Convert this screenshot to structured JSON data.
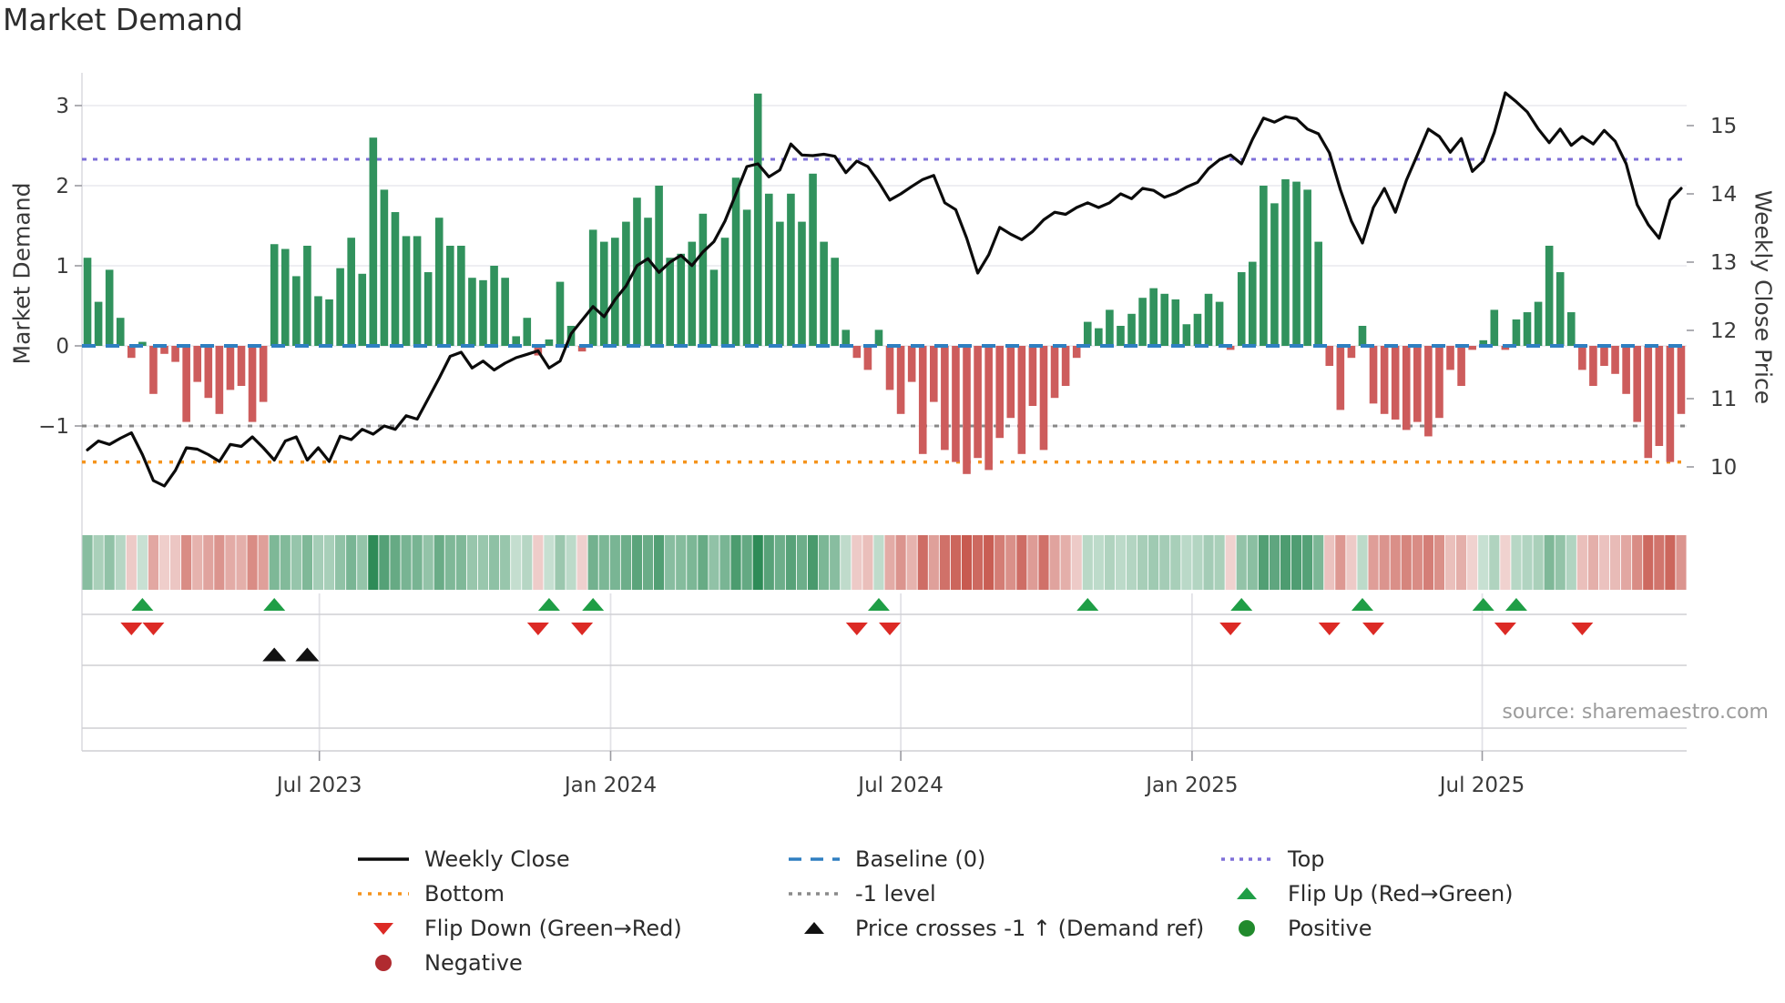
{
  "title": "Market Demand",
  "left_axis_label": "Market Demand",
  "right_axis_label": "Weekly Close Price",
  "source": "source: sharemaestro.com",
  "legend": {
    "col1": [
      {
        "label": "Weekly Close",
        "marker": "line-black"
      },
      {
        "label": "Bottom",
        "marker": "dotted-orange"
      },
      {
        "label": "Flip Down (Green→Red)",
        "marker": "tri-down-red"
      },
      {
        "label": "Negative",
        "marker": "circle-darkred"
      }
    ],
    "col2": [
      {
        "label": "Baseline (0)",
        "marker": "dash-blue"
      },
      {
        "label": "-1 level",
        "marker": "dotted-gray"
      },
      {
        "label": "Price crosses -1 ↑ (Demand ref)",
        "marker": "tri-up-black"
      }
    ],
    "col3": [
      {
        "label": "Top",
        "marker": "dotted-purple"
      },
      {
        "label": "Flip Up (Red→Green)",
        "marker": "tri-up-green"
      },
      {
        "label": "Positive",
        "marker": "circle-green"
      }
    ]
  },
  "chart_data": {
    "type": "bar",
    "subtype": "weekly demand bars + price line + signal heatmap strip + flip markers",
    "title": "Market Demand",
    "xlabel": "",
    "ylabel_left": "Market Demand",
    "ylabel_right": "Weekly Close Price",
    "x_tick_labels": [
      "Jul 2023",
      "Jan 2024",
      "Jul 2024",
      "Jan 2025",
      "Jul 2025"
    ],
    "x_tick_weeks": [
      21.6,
      48.1,
      74.5,
      101.0,
      127.4
    ],
    "n_weeks": 146,
    "left_ticks": [
      {
        "label": "3",
        "v": 3
      },
      {
        "label": "2",
        "v": 2
      },
      {
        "label": "1",
        "v": 1
      },
      {
        "label": "0",
        "v": 0
      },
      {
        "label": "−1",
        "v": -1
      }
    ],
    "right_ticks": [
      {
        "label": "15",
        "p": 15
      },
      {
        "label": "14",
        "p": 14
      },
      {
        "label": "13",
        "p": 13
      },
      {
        "label": "12",
        "p": 12
      },
      {
        "label": "11",
        "p": 11
      },
      {
        "label": "10",
        "p": 10
      }
    ],
    "ylim_demand": [
      -2.07,
      3.41
    ],
    "ylim_price": [
      9.35,
      15.77
    ],
    "levels": {
      "top": 2.33,
      "baseline": 0,
      "minus1": -1,
      "bottom": -1.45
    },
    "series": {
      "demand": [
        1.1,
        0.55,
        0.95,
        0.35,
        -0.15,
        0.05,
        -0.6,
        -0.1,
        -0.2,
        -0.95,
        -0.45,
        -0.65,
        -0.85,
        -0.55,
        -0.5,
        -0.95,
        -0.7,
        1.27,
        1.21,
        0.87,
        1.25,
        0.62,
        0.58,
        0.97,
        1.35,
        0.9,
        2.6,
        1.95,
        1.67,
        1.37,
        1.37,
        0.92,
        1.6,
        1.25,
        1.25,
        0.85,
        0.82,
        1.0,
        0.85,
        0.12,
        0.35,
        -0.12,
        0.08,
        0.8,
        0.25,
        -0.07,
        1.45,
        1.3,
        1.35,
        1.55,
        1.85,
        1.6,
        2.0,
        1.1,
        1.15,
        1.3,
        1.65,
        0.95,
        1.35,
        2.1,
        1.7,
        3.15,
        1.9,
        1.55,
        1.9,
        1.55,
        2.15,
        1.3,
        1.1,
        0.2,
        -0.15,
        -0.3,
        0.2,
        -0.55,
        -0.85,
        -0.45,
        -1.35,
        -0.7,
        -1.3,
        -1.45,
        -1.6,
        -1.4,
        -1.55,
        -1.15,
        -0.9,
        -1.35,
        -0.75,
        -1.3,
        -0.65,
        -0.5,
        -0.15,
        0.3,
        0.22,
        0.45,
        0.25,
        0.4,
        0.6,
        0.72,
        0.65,
        0.58,
        0.27,
        0.4,
        0.65,
        0.55,
        -0.05,
        0.92,
        1.05,
        2.0,
        1.78,
        2.08,
        2.05,
        1.95,
        1.3,
        -0.25,
        -0.8,
        -0.15,
        0.25,
        -0.72,
        -0.85,
        -0.92,
        -1.05,
        -0.95,
        -1.13,
        -0.9,
        -0.3,
        -0.5,
        -0.05,
        0.07,
        0.45,
        -0.05,
        0.33,
        0.42,
        0.55,
        1.25,
        0.92,
        0.42,
        -0.3,
        -0.5,
        -0.25,
        -0.35,
        -0.6,
        -0.95,
        -1.4,
        -1.25,
        -1.45,
        -0.85
      ],
      "price": [
        10.25,
        10.38,
        10.33,
        10.42,
        10.5,
        10.18,
        9.8,
        9.72,
        9.95,
        10.28,
        10.26,
        10.18,
        10.08,
        10.33,
        10.3,
        10.44,
        10.28,
        10.1,
        10.38,
        10.44,
        10.1,
        10.28,
        10.08,
        10.45,
        10.4,
        10.55,
        10.48,
        10.6,
        10.55,
        10.75,
        10.7,
        11.0,
        11.3,
        11.62,
        11.68,
        11.45,
        11.55,
        11.42,
        11.52,
        11.6,
        11.65,
        11.7,
        11.45,
        11.55,
        11.95,
        12.15,
        12.35,
        12.2,
        12.45,
        12.65,
        12.95,
        13.05,
        12.85,
        13.0,
        13.1,
        12.95,
        13.15,
        13.3,
        13.6,
        14.0,
        14.4,
        14.44,
        14.25,
        14.35,
        14.73,
        14.57,
        14.56,
        14.58,
        14.55,
        14.31,
        14.48,
        14.4,
        14.17,
        13.91,
        14.0,
        14.11,
        14.21,
        14.27,
        13.87,
        13.77,
        13.35,
        12.84,
        13.11,
        13.51,
        13.41,
        13.33,
        13.45,
        13.62,
        13.73,
        13.7,
        13.8,
        13.87,
        13.8,
        13.87,
        14.0,
        13.93,
        14.08,
        14.05,
        13.95,
        14.01,
        14.1,
        14.17,
        14.37,
        14.5,
        14.57,
        14.44,
        14.8,
        15.11,
        15.05,
        15.13,
        15.1,
        14.95,
        14.88,
        14.6,
        14.06,
        13.6,
        13.28,
        13.8,
        14.08,
        13.73,
        14.2,
        14.57,
        14.95,
        14.84,
        14.61,
        14.81,
        14.33,
        14.48,
        14.9,
        15.48,
        15.35,
        15.2,
        14.95,
        14.75,
        14.95,
        14.71,
        14.84,
        14.73,
        14.93,
        14.77,
        14.44,
        13.84,
        13.55,
        13.35,
        13.91,
        14.08
      ]
    },
    "markers": {
      "flip_up_weeks": [
        5,
        17,
        42,
        46,
        72,
        91,
        105,
        116,
        127,
        130
      ],
      "flip_down_weeks": [
        4,
        6,
        41,
        45,
        70,
        73,
        104,
        113,
        117,
        129,
        136
      ],
      "price_cross_weeks": [
        17,
        20
      ]
    },
    "legend_entries": [
      "Weekly Close",
      "Baseline (0)",
      "Top",
      "Bottom",
      "-1 level",
      "Flip Up (Red→Green)",
      "Flip Down (Green→Red)",
      "Price crosses -1 ↑ (Demand ref)",
      "Positive",
      "Negative"
    ],
    "grid": "horizontal light gridlines at demand integers; faint vertical gridlines in marker strip",
    "legend_position": "bottom center, 3 columns",
    "colors": {
      "bar_positive": "#31925d",
      "bar_negative": "#cd5c5c",
      "price_line": "#0b0b0b",
      "baseline": "#2f7fc1",
      "top_line": "#7e6fd8",
      "bottom_line": "#f5941d",
      "minus1_line": "#888888",
      "flip_up": "#1f9e46",
      "flip_down": "#dc2a25",
      "price_cross": "#111111",
      "positive_dot": "#218a2c",
      "negative_dot": "#b02b30",
      "heat_green": "#2e8b57",
      "heat_red": "#c85a50"
    }
  }
}
